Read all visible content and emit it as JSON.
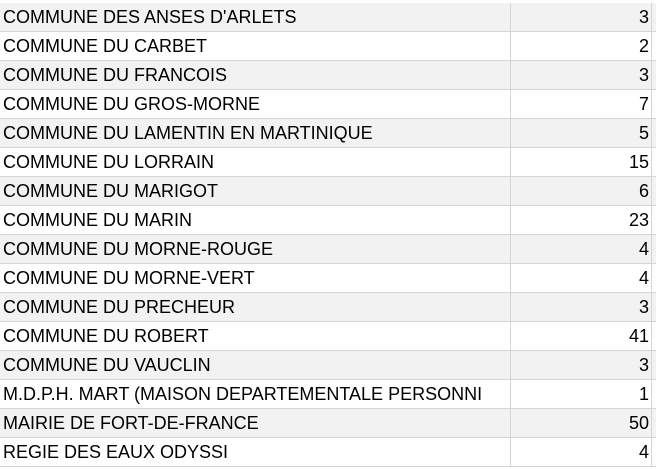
{
  "colors": {
    "row_alt_background": "#f2f2f2",
    "row_background": "#ffffff",
    "gridline": "#d4d4d4",
    "text": "#000000"
  },
  "rows": [
    {
      "name": "COMMUNE DES ANSES D'ARLETS",
      "count": "3"
    },
    {
      "name": "COMMUNE DU CARBET",
      "count": "2"
    },
    {
      "name": "COMMUNE DU FRANCOIS",
      "count": "3"
    },
    {
      "name": "COMMUNE DU GROS-MORNE",
      "count": "7"
    },
    {
      "name": "COMMUNE DU LAMENTIN EN MARTINIQUE",
      "count": "5"
    },
    {
      "name": "COMMUNE DU LORRAIN",
      "count": "15"
    },
    {
      "name": "COMMUNE DU MARIGOT",
      "count": "6"
    },
    {
      "name": "COMMUNE DU MARIN",
      "count": "23"
    },
    {
      "name": "COMMUNE DU MORNE-ROUGE",
      "count": "4"
    },
    {
      "name": "COMMUNE DU MORNE-VERT",
      "count": "4"
    },
    {
      "name": "COMMUNE DU PRECHEUR",
      "count": "3"
    },
    {
      "name": "COMMUNE DU ROBERT",
      "count": "41"
    },
    {
      "name": "COMMUNE DU VAUCLIN",
      "count": "3"
    },
    {
      "name": "M.D.P.H. MART (MAISON DEPARTEMENTALE  PERSONNI",
      "count": "1"
    },
    {
      "name": "MAIRIE DE FORT-DE-FRANCE",
      "count": "50"
    },
    {
      "name": "REGIE DES EAUX ODYSSI",
      "count": "4"
    }
  ]
}
